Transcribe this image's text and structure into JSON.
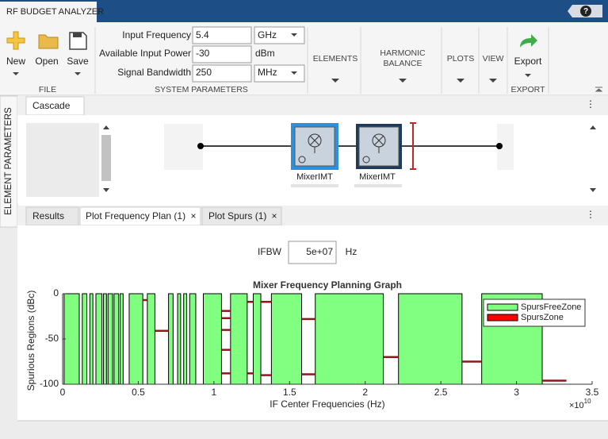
{
  "app": {
    "title": "RF BUDGET ANALYZER"
  },
  "toolstrip": {
    "file": {
      "label": "FILE",
      "buttons": [
        "New",
        "Open",
        "Save"
      ]
    },
    "system_parameters": {
      "label": "SYSTEM PARAMETERS",
      "fields": [
        {
          "label": "Input Frequency",
          "value": "5.4",
          "unit": "GHz"
        },
        {
          "label": "Available Input Power",
          "value": "-30",
          "unit": "dBm"
        },
        {
          "label": "Signal Bandwidth",
          "value": "250",
          "unit": "MHz"
        }
      ]
    },
    "elements": "ELEMENTS",
    "harmonic_balance": [
      "HARMONIC",
      "BALANCE"
    ],
    "plots": "PLOTS",
    "view": "VIEW",
    "export": {
      "button": "Export",
      "label": "EXPORT"
    }
  },
  "side_panel": "ELEMENT PARAMETERS",
  "cascade": {
    "tab": "Cascade",
    "elements": [
      "MixerIMT",
      "MixerIMT"
    ]
  },
  "tabs": [
    "Results",
    "Plot Frequency Plan (1)",
    "Plot Spurs (1)"
  ],
  "ifbw": {
    "label": "IFBW",
    "value": "5e+07",
    "unit": "Hz"
  },
  "chart_data": {
    "type": "zone",
    "title": "Mixer Frequency Planning Graph",
    "x_label": "IF Center Frequencies (Hz)",
    "y_label": "Spurious Regions (dBc)",
    "x_multiplier": {
      "base": "×10",
      "exponent": "10"
    },
    "xlim": [
      0,
      3.5
    ],
    "xticks": [
      0,
      0.5,
      1,
      1.5,
      2,
      2.5,
      3,
      3.5
    ],
    "ylim": [
      -100,
      0
    ],
    "yticks": [
      -100,
      -50,
      0
    ],
    "legend": "upper right",
    "series": [
      {
        "name": "SpursFreeZone",
        "color": "#80ff80",
        "zones": [
          [
            0.01,
            0.11
          ],
          [
            0.13,
            0.16
          ],
          [
            0.18,
            0.2
          ],
          [
            0.22,
            0.26
          ],
          [
            0.27,
            0.29
          ],
          [
            0.3,
            0.33
          ],
          [
            0.34,
            0.37
          ],
          [
            0.38,
            0.4
          ],
          [
            0.44,
            0.53
          ],
          [
            0.56,
            0.61
          ],
          [
            0.7,
            0.73
          ],
          [
            0.76,
            0.78
          ],
          [
            0.8,
            0.82
          ],
          [
            0.84,
            0.88
          ],
          [
            0.93,
            1.05
          ],
          [
            1.11,
            1.22
          ],
          [
            1.26,
            1.31
          ],
          [
            1.38,
            1.58
          ],
          [
            1.67,
            2.12
          ],
          [
            2.22,
            2.64
          ],
          [
            2.77,
            3.17
          ]
        ]
      },
      {
        "name": "SpursZone",
        "color": "#ff0000",
        "line_color": "#8b1a1a",
        "segments": [
          {
            "x": [
              0.53,
              0.56
            ],
            "y": -7
          },
          {
            "x": [
              0.61,
              0.7
            ],
            "y": -41
          },
          {
            "x": [
              1.05,
              1.11
            ],
            "y": -19
          },
          {
            "x": [
              1.05,
              1.11
            ],
            "y": -27
          },
          {
            "x": [
              1.05,
              1.11
            ],
            "y": -40
          },
          {
            "x": [
              1.05,
              1.11
            ],
            "y": -62
          },
          {
            "x": [
              1.05,
              1.11
            ],
            "y": -88
          },
          {
            "x": [
              1.22,
              1.26
            ],
            "y": -9
          },
          {
            "x": [
              1.22,
              1.26
            ],
            "y": -88
          },
          {
            "x": [
              1.31,
              1.38
            ],
            "y": -9
          },
          {
            "x": [
              1.31,
              1.38
            ],
            "y": -90
          },
          {
            "x": [
              1.58,
              1.67
            ],
            "y": -28
          },
          {
            "x": [
              1.58,
              1.67
            ],
            "y": -89
          },
          {
            "x": [
              2.12,
              2.22
            ],
            "y": -70
          },
          {
            "x": [
              2.64,
              2.77
            ],
            "y": -75
          },
          {
            "x": [
              3.17,
              3.33
            ],
            "y": -96
          }
        ]
      }
    ]
  }
}
